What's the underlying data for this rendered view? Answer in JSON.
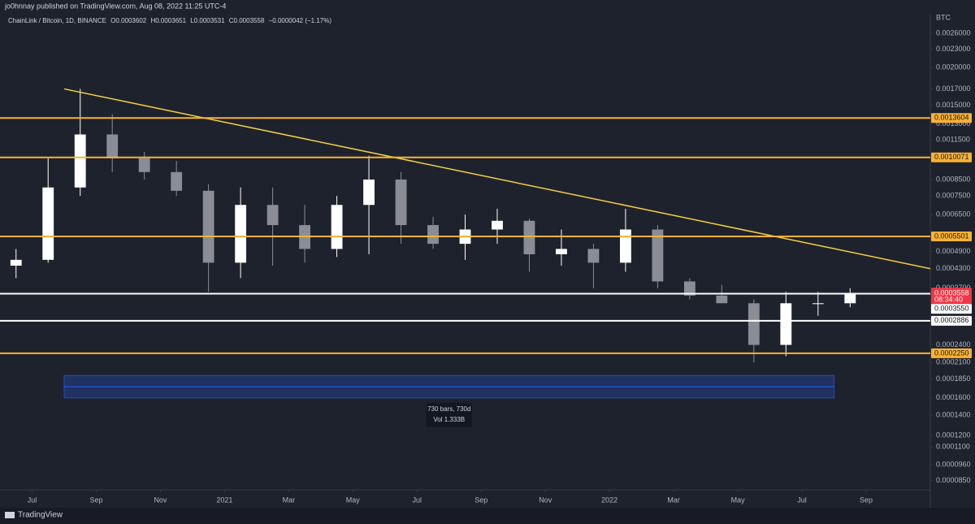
{
  "header": {
    "publisher": "jo0hnnay published on TradingView.com, Aug 08, 2022 11:25 UTC-4"
  },
  "chart_data": {
    "type": "candlestick",
    "symbol": "ChainLink / Bitcoin, 1D, BINANCE",
    "ohlc_legend": [
      "O0.0003602",
      "H0.0003651",
      "L0.0003531",
      "C0.0003558"
    ],
    "change": "−0.0000042 (−1.17%)",
    "currency": "BTC",
    "x": [
      "2020-06",
      "2020-07",
      "2020-08",
      "2020-09",
      "2020-10",
      "2020-11",
      "2020-12",
      "2021-01",
      "2021-02",
      "2021-03",
      "2021-04",
      "2021-05",
      "2021-06",
      "2021-07",
      "2021-08",
      "2021-09",
      "2021-10",
      "2021-11",
      "2021-12",
      "2022-01",
      "2022-02",
      "2022-03",
      "2022-04",
      "2022-05",
      "2022-06",
      "2022-07",
      "2022-08"
    ],
    "open": [
      0.00044,
      0.00046,
      0.0008,
      0.0012,
      0.001,
      0.0009,
      0.00078,
      0.00045,
      0.0007,
      0.0006,
      0.0005,
      0.0007,
      0.00085,
      0.0006,
      0.00052,
      0.00058,
      0.00062,
      0.00048,
      0.0005,
      0.00045,
      0.00058,
      0.00039,
      0.00035,
      0.00033,
      0.00024,
      0.00033,
      0.00033
    ],
    "high": [
      0.0005,
      0.001,
      0.0017,
      0.0014,
      0.00105,
      0.00098,
      0.00082,
      0.0008,
      0.0008,
      0.0007,
      0.00075,
      0.00102,
      0.0009,
      0.00064,
      0.00065,
      0.00068,
      0.00063,
      0.00058,
      0.00052,
      0.00068,
      0.0006,
      0.0004,
      0.00038,
      0.00034,
      0.00036,
      0.00036,
      0.00037
    ],
    "low": [
      0.0004,
      0.00045,
      0.00075,
      0.0009,
      0.00085,
      0.00075,
      0.00036,
      0.0004,
      0.00044,
      0.00045,
      0.00047,
      0.00048,
      0.00052,
      0.0005,
      0.00046,
      0.00052,
      0.00042,
      0.00044,
      0.00037,
      0.00042,
      0.00037,
      0.00034,
      0.00033,
      0.00021,
      0.00022,
      0.0003,
      0.00032
    ],
    "close": [
      0.00046,
      0.0008,
      0.0012,
      0.001,
      0.0009,
      0.00078,
      0.00045,
      0.0007,
      0.0006,
      0.0005,
      0.0007,
      0.00085,
      0.0006,
      0.00052,
      0.00058,
      0.00062,
      0.00048,
      0.0005,
      0.00045,
      0.00058,
      0.00039,
      0.00035,
      0.00033,
      0.00024,
      0.00033,
      0.00033,
      0.0003558
    ],
    "up_color": "#ffffff",
    "down_color": "#8a8d96",
    "log_scale": true,
    "ylim": [
      7.92e-05,
      0.003
    ],
    "yticks": [
      {
        "value": 0.0026,
        "label": "0.0026000"
      },
      {
        "value": 0.0023,
        "label": "0.0023000"
      },
      {
        "value": 0.002,
        "label": "0.0020000"
      },
      {
        "value": 0.0017,
        "label": "0.0017000"
      },
      {
        "value": 0.0015,
        "label": "0.0015000"
      },
      {
        "value": 0.0013,
        "label": "0.0013000"
      },
      {
        "value": 0.00115,
        "label": "0.0011500"
      },
      {
        "value": 0.00085,
        "label": "0.0008500"
      },
      {
        "value": 0.00075,
        "label": "0.0007500"
      },
      {
        "value": 0.00065,
        "label": "0.0006500"
      },
      {
        "value": 0.00049,
        "label": "0.0004900"
      },
      {
        "value": 0.00043,
        "label": "0.0004300"
      },
      {
        "value": 0.00037,
        "label": "0.0003700"
      },
      {
        "value": 0.00024,
        "label": "0.0002400"
      },
      {
        "value": 0.00021,
        "label": "0.0002100"
      },
      {
        "value": 0.000185,
        "label": "0.0001850"
      },
      {
        "value": 0.00016,
        "label": "0.0001600"
      },
      {
        "value": 0.00014,
        "label": "0.0001400"
      },
      {
        "value": 0.00012,
        "label": "0.0001200"
      },
      {
        "value": 0.00011,
        "label": "0.0001100"
      },
      {
        "value": 9.6e-05,
        "label": "0.0000960"
      },
      {
        "value": 8.5e-05,
        "label": "0.0000850"
      }
    ],
    "xlim": [
      "2020-06",
      "2022-11"
    ],
    "xticks": [
      {
        "value": "2020-07",
        "label": "Jul"
      },
      {
        "value": "2020-09",
        "label": "Sep"
      },
      {
        "value": "2020-11",
        "label": "Nov"
      },
      {
        "value": "2021-01",
        "label": "2021"
      },
      {
        "value": "2021-03",
        "label": "Mar"
      },
      {
        "value": "2021-05",
        "label": "May"
      },
      {
        "value": "2021-07",
        "label": "Jul"
      },
      {
        "value": "2021-09",
        "label": "Sep"
      },
      {
        "value": "2021-11",
        "label": "Nov"
      },
      {
        "value": "2022-01",
        "label": "2022"
      },
      {
        "value": "2022-03",
        "label": "Mar"
      },
      {
        "value": "2022-05",
        "label": "May"
      },
      {
        "value": "2022-07",
        "label": "Jul"
      },
      {
        "value": "2022-09",
        "label": "Sep"
      }
    ],
    "levels": [
      {
        "price": 0.0013604,
        "color": "#f9b234"
      },
      {
        "price": 0.0010071,
        "color": "#f9b234"
      },
      {
        "price": 0.0005501,
        "color": "#f9b234"
      },
      {
        "price": 0.000355,
        "label": "0.0003550",
        "color": "#ffffff"
      },
      {
        "price": 0.0002886,
        "color": "#ffffff"
      },
      {
        "price": 0.000225,
        "label": "0.0002250",
        "color": "#f9b234"
      }
    ],
    "trendline": {
      "x": [
        "2020-08",
        "2022-11"
      ],
      "y": [
        0.0017,
        0.00043
      ],
      "color": "#f5d142"
    },
    "last_price": {
      "countdown": "08:34:40",
      "color": "#f23645"
    },
    "measure": {
      "x": [
        "2020-08",
        "2022-08"
      ],
      "y": [
        0.00016,
        0.00019
      ],
      "bars": "730 bars, 730d",
      "volume": "Vol 1.333B",
      "color": "#2962ff"
    }
  },
  "footer": {
    "brand": "TradingView"
  }
}
